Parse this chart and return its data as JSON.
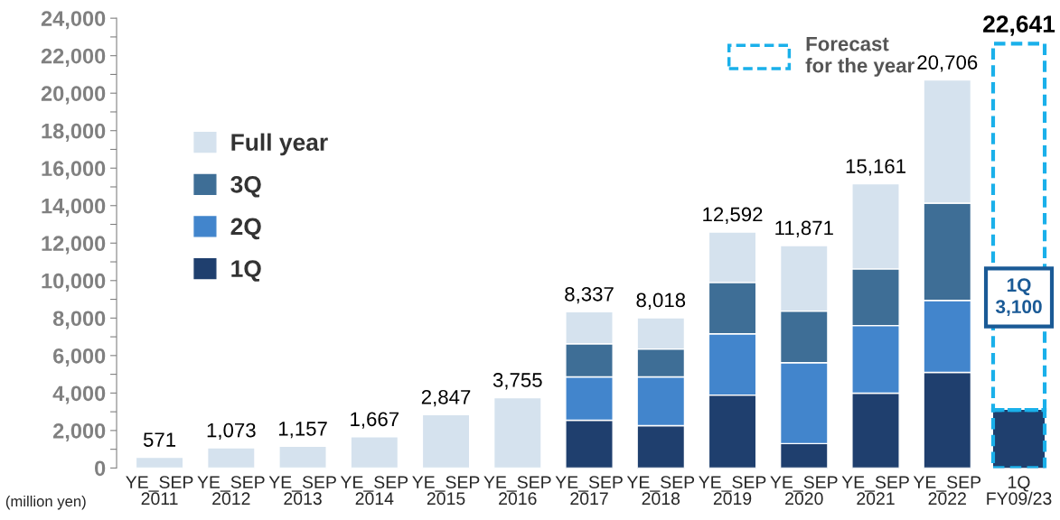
{
  "chart_data": {
    "type": "bar",
    "stacked": true,
    "categories": [
      "YE_SEP\n2011",
      "YE_SEP\n2012",
      "YE_SEP\n2013",
      "YE_SEP\n2014",
      "YE_SEP\n2015",
      "YE_SEP\n2016",
      "YE_SEP\n2017",
      "YE_SEP\n2018",
      "YE_SEP\n2019",
      "YE_SEP\n2020",
      "YE_SEP\n2021",
      "YE_SEP\n2022",
      "1Q\nFY09/23"
    ],
    "series": [
      {
        "name": "1Q",
        "color": "#1f3f6e",
        "values": [
          null,
          null,
          null,
          null,
          null,
          null,
          2550,
          2260,
          3890,
          1300,
          3990,
          5100,
          3100
        ]
      },
      {
        "name": "2Q",
        "color": "#4285cc",
        "values": [
          null,
          null,
          null,
          null,
          null,
          null,
          2310,
          2600,
          3270,
          4320,
          3610,
          3840,
          null
        ]
      },
      {
        "name": "3Q",
        "color": "#3e6e96",
        "values": [
          null,
          null,
          null,
          null,
          null,
          null,
          1770,
          1490,
          2740,
          2750,
          3020,
          5190,
          null
        ]
      },
      {
        "name": "Full year",
        "color": "#d5e2ee",
        "values": [
          571,
          1073,
          1157,
          1667,
          2847,
          3755,
          1707,
          1668,
          2692,
          3501,
          4541,
          6576,
          null
        ]
      },
      {
        "name": "Forecast\nfor the year",
        "color": "#1ab0ea",
        "line_style": "dashed",
        "values": [
          null,
          null,
          null,
          null,
          null,
          null,
          null,
          null,
          null,
          null,
          null,
          null,
          19541
        ]
      }
    ],
    "totals": [
      "571",
      "1,073",
      "1,157",
      "1,667",
      "2,847",
      "3,755",
      "8,337",
      "8,018",
      "12,592",
      "11,871",
      "15,161",
      "20,706",
      "22,641"
    ],
    "ylim": [
      0,
      24000
    ],
    "yticks": [
      0,
      {
        "value": 1000,
        "label": null
      },
      {
        "value": 2000,
        "label": "2,000"
      },
      {
        "value": 3000,
        "label": null
      },
      {
        "value": 4000,
        "label": "4,000"
      },
      {
        "value": 5000,
        "label": null
      },
      {
        "value": 6000,
        "label": "6,000"
      },
      {
        "value": 7000,
        "label": null
      },
      {
        "value": 8000,
        "label": "8,000"
      },
      {
        "value": 9000,
        "label": null
      },
      {
        "value": 10000,
        "label": "10,000"
      },
      {
        "value": 11000,
        "label": null
      },
      {
        "value": 12000,
        "label": "12,000"
      },
      {
        "value": 13000,
        "label": null
      },
      {
        "value": 14000,
        "label": "14,000"
      },
      {
        "value": 15000,
        "label": null
      },
      {
        "value": 16000,
        "label": "16,000"
      },
      {
        "value": 17000,
        "label": null
      },
      {
        "value": 18000,
        "label": "18,000"
      },
      {
        "value": 19000,
        "label": null
      },
      {
        "value": 20000,
        "label": "20,000"
      },
      {
        "value": 21000,
        "label": null
      },
      {
        "value": 22000,
        "label": "22,000"
      },
      {
        "value": 23000,
        "label": null
      },
      {
        "value": 24000,
        "label": "24,000"
      }
    ],
    "annotations": [
      "1Q\n3,100",
      "(million yen)"
    ],
    "legend": "center left",
    "grid": false
  }
}
